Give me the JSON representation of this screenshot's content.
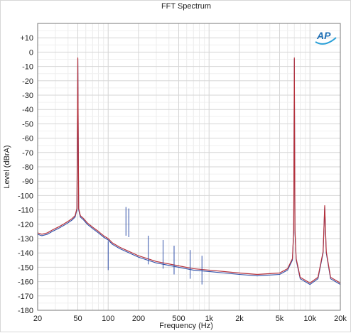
{
  "chart_data": {
    "type": "line",
    "title": "FFT Spectrum",
    "xlabel": "Frequency (Hz)",
    "ylabel": "Level (dBrA)",
    "x_scale": "log",
    "xlim": [
      20,
      20000
    ],
    "ylim": [
      -180,
      20
    ],
    "grid": true,
    "x_ticks": [
      {
        "value": 20,
        "label": "20"
      },
      {
        "value": 50,
        "label": "50"
      },
      {
        "value": 100,
        "label": "100"
      },
      {
        "value": 200,
        "label": "200"
      },
      {
        "value": 500,
        "label": "500"
      },
      {
        "value": 1000,
        "label": "1k"
      },
      {
        "value": 2000,
        "label": "2k"
      },
      {
        "value": 5000,
        "label": "5k"
      },
      {
        "value": 10000,
        "label": "10k"
      },
      {
        "value": 20000,
        "label": "20k"
      }
    ],
    "y_ticks": [
      {
        "value": 10,
        "label": "+10"
      },
      {
        "value": 0,
        "label": "0"
      },
      {
        "value": -10,
        "label": "-10"
      },
      {
        "value": -20,
        "label": "-20"
      },
      {
        "value": -30,
        "label": "-30"
      },
      {
        "value": -40,
        "label": "-40"
      },
      {
        "value": -50,
        "label": "-50"
      },
      {
        "value": -60,
        "label": "-60"
      },
      {
        "value": -70,
        "label": "-70"
      },
      {
        "value": -80,
        "label": "-80"
      },
      {
        "value": -90,
        "label": "-90"
      },
      {
        "value": -100,
        "label": "-100"
      },
      {
        "value": -110,
        "label": "-110"
      },
      {
        "value": -120,
        "label": "-120"
      },
      {
        "value": -130,
        "label": "-130"
      },
      {
        "value": -140,
        "label": "-140"
      },
      {
        "value": -150,
        "label": "-150"
      },
      {
        "value": -160,
        "label": "-160"
      },
      {
        "value": -170,
        "label": "-170"
      },
      {
        "value": -180,
        "label": "-180"
      }
    ],
    "series": [
      {
        "color": "#2f4fa8",
        "points": [
          [
            20,
            -127
          ],
          [
            22,
            -128
          ],
          [
            25,
            -127
          ],
          [
            28,
            -125
          ],
          [
            32,
            -123
          ],
          [
            36,
            -121
          ],
          [
            40,
            -119
          ],
          [
            44,
            -117
          ],
          [
            47,
            -115
          ],
          [
            49,
            -110
          ],
          [
            50,
            -5
          ],
          [
            51,
            -110
          ],
          [
            53,
            -115
          ],
          [
            57,
            -117
          ],
          [
            62,
            -120
          ],
          [
            70,
            -123
          ],
          [
            80,
            -126
          ],
          [
            90,
            -129
          ],
          [
            100,
            -131
          ],
          [
            110,
            -134
          ],
          [
            130,
            -137
          ],
          [
            150,
            -139
          ],
          [
            200,
            -143
          ],
          [
            300,
            -147
          ],
          [
            500,
            -150
          ],
          [
            700,
            -152
          ],
          [
            1000,
            -153
          ],
          [
            2000,
            -155
          ],
          [
            3000,
            -156
          ],
          [
            5000,
            -155
          ],
          [
            6000,
            -152
          ],
          [
            6700,
            -145
          ],
          [
            6900,
            -125
          ],
          [
            7000,
            -5
          ],
          [
            7100,
            -125
          ],
          [
            7300,
            -145
          ],
          [
            8000,
            -158
          ],
          [
            10000,
            -162
          ],
          [
            12000,
            -158
          ],
          [
            13500,
            -140
          ],
          [
            14000,
            -108
          ],
          [
            14500,
            -140
          ],
          [
            16000,
            -158
          ],
          [
            20000,
            -162
          ]
        ]
      },
      {
        "color": "#b5323c",
        "points": [
          [
            20,
            -126
          ],
          [
            22,
            -127
          ],
          [
            25,
            -126
          ],
          [
            28,
            -124
          ],
          [
            32,
            -122
          ],
          [
            36,
            -120
          ],
          [
            40,
            -118
          ],
          [
            44,
            -116
          ],
          [
            47,
            -114
          ],
          [
            49,
            -109
          ],
          [
            50,
            -4
          ],
          [
            51,
            -109
          ],
          [
            53,
            -114
          ],
          [
            57,
            -116
          ],
          [
            62,
            -119
          ],
          [
            70,
            -122
          ],
          [
            80,
            -125
          ],
          [
            90,
            -128
          ],
          [
            100,
            -130
          ],
          [
            110,
            -133
          ],
          [
            130,
            -136
          ],
          [
            150,
            -138
          ],
          [
            200,
            -142
          ],
          [
            300,
            -146
          ],
          [
            500,
            -149
          ],
          [
            700,
            -151
          ],
          [
            1000,
            -152
          ],
          [
            2000,
            -154
          ],
          [
            3000,
            -155
          ],
          [
            5000,
            -154
          ],
          [
            6000,
            -151
          ],
          [
            6700,
            -144
          ],
          [
            6900,
            -124
          ],
          [
            7000,
            -4
          ],
          [
            7100,
            -124
          ],
          [
            7300,
            -144
          ],
          [
            8000,
            -157
          ],
          [
            10000,
            -161
          ],
          [
            12000,
            -157
          ],
          [
            13500,
            -139
          ],
          [
            14000,
            -107
          ],
          [
            14500,
            -139
          ],
          [
            16000,
            -157
          ],
          [
            20000,
            -161
          ]
        ]
      }
    ],
    "spurs": [
      {
        "x": 100,
        "y": -132
      },
      {
        "x": 150,
        "y": -108
      },
      {
        "x": 160,
        "y": -109
      },
      {
        "x": 250,
        "y": -128
      },
      {
        "x": 350,
        "y": -131
      },
      {
        "x": 450,
        "y": -135
      },
      {
        "x": 650,
        "y": -138
      },
      {
        "x": 850,
        "y": -142
      }
    ]
  },
  "logo": {
    "text": "AP",
    "color": "#1f6fb5"
  }
}
